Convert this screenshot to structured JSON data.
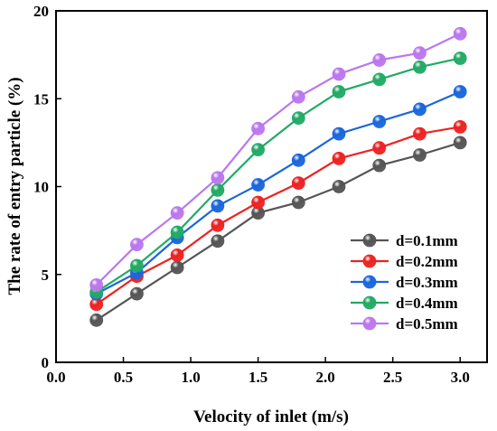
{
  "chart_data": {
    "type": "line",
    "title": "",
    "xlabel": "Velocity of inlet (m/s)",
    "ylabel": "The rate of entry particle (%)",
    "xlim": [
      0.0,
      3.2
    ],
    "ylim": [
      0,
      20
    ],
    "xticks": [
      "0.0",
      "0.5",
      "1.0",
      "1.5",
      "2.0",
      "2.5",
      "3.0"
    ],
    "yticks": [
      "0",
      "5",
      "10",
      "15",
      "20"
    ],
    "grid": false,
    "legend_position": "bottom-right",
    "x": [
      0.3,
      0.6,
      0.9,
      1.2,
      1.5,
      1.8,
      2.1,
      2.4,
      2.7,
      3.0
    ],
    "series": [
      {
        "name": "d=0.1mm",
        "color": "#555555",
        "values": [
          2.4,
          3.9,
          5.4,
          6.9,
          8.5,
          9.1,
          10.0,
          11.2,
          11.8,
          12.5
        ]
      },
      {
        "name": "d=0.2mm",
        "color": "#ee2222",
        "values": [
          3.3,
          4.9,
          6.1,
          7.8,
          9.1,
          10.2,
          11.6,
          12.2,
          13.0,
          13.4
        ]
      },
      {
        "name": "d=0.3mm",
        "color": "#1a66dd",
        "values": [
          3.9,
          5.1,
          7.1,
          8.9,
          10.1,
          11.5,
          13.0,
          13.7,
          14.4,
          15.4
        ]
      },
      {
        "name": "d=0.4mm",
        "color": "#22aa66",
        "values": [
          4.0,
          5.5,
          7.4,
          9.8,
          12.1,
          13.9,
          15.4,
          16.1,
          16.8,
          17.3
        ]
      },
      {
        "name": "d=0.5mm",
        "color": "#bb77ee",
        "values": [
          4.4,
          6.7,
          8.5,
          10.5,
          13.3,
          15.1,
          16.4,
          17.2,
          17.6,
          18.7
        ]
      }
    ]
  }
}
